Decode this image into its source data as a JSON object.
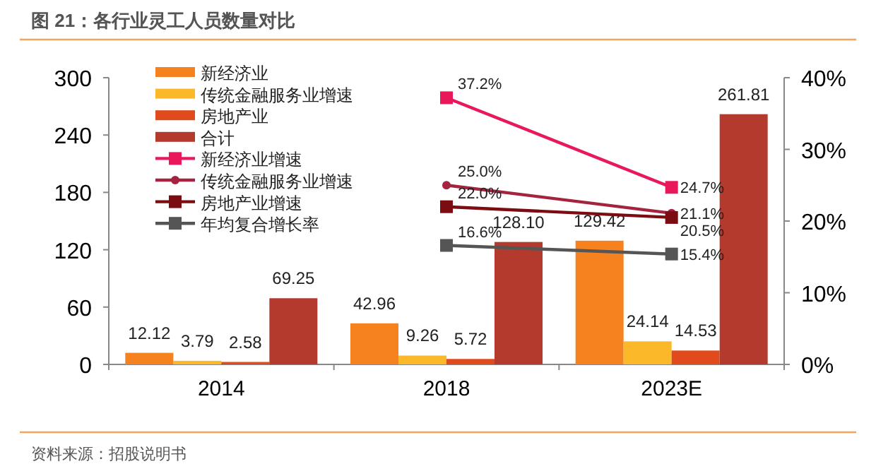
{
  "chart_data": {
    "type": "bar",
    "title": "图 21：各行业灵工人员数量对比",
    "categories": [
      "2014",
      "2018",
      "2023E"
    ],
    "series": [
      {
        "name": "新经济业",
        "color": "#f5821f",
        "values": [
          12.12,
          42.96,
          129.42
        ],
        "value_labels": [
          "12.12",
          "42.96",
          "129.42"
        ]
      },
      {
        "name": "传统金融服务业增速",
        "color": "#fbb829",
        "values": [
          3.79,
          9.26,
          24.14
        ],
        "value_labels": [
          "3.79",
          "9.26",
          "24.14"
        ]
      },
      {
        "name": "房地产业",
        "color": "#e04a1d",
        "values": [
          2.58,
          5.72,
          14.53
        ],
        "value_labels": [
          "2.58",
          "5.72",
          "14.53"
        ]
      },
      {
        "name": "合计",
        "color": "#b33a2c",
        "values": [
          69.25,
          128.1,
          261.81
        ],
        "value_labels": [
          "69.25",
          "128.10",
          "261.81"
        ]
      },
      {
        "name": "新经济业增速",
        "type": "line",
        "axis": "y2",
        "marker": "square",
        "color": "#e8185a",
        "values": [
          null,
          37.2,
          24.7
        ],
        "value_labels": [
          null,
          "37.2%",
          "24.7%"
        ]
      },
      {
        "name": "传统金融服务业增速",
        "type": "line",
        "axis": "y2",
        "marker": "circle",
        "color": "#a4233f",
        "values": [
          null,
          25.0,
          21.1
        ],
        "value_labels": [
          null,
          "25.0%",
          "21.1%"
        ]
      },
      {
        "name": "房地产业增速",
        "type": "line",
        "axis": "y2",
        "marker": "square",
        "color": "#7a0c12",
        "values": [
          null,
          22.0,
          20.5
        ],
        "value_labels": [
          null,
          "22.0%",
          "20.5%"
        ]
      },
      {
        "name": "年均复合增长率",
        "type": "line",
        "axis": "y2",
        "marker": "square",
        "color": "#555555",
        "values": [
          null,
          16.6,
          15.4
        ],
        "value_labels": [
          null,
          "16.6%",
          "15.4%"
        ]
      }
    ],
    "ylim": [
      0,
      300
    ],
    "yticks": [
      0,
      60,
      120,
      180,
      240,
      300
    ],
    "y2lim": [
      0,
      40
    ],
    "y2ticks": [
      {
        "value": 0,
        "label": "0%"
      },
      {
        "value": 10,
        "label": "10%"
      },
      {
        "value": 20,
        "label": "20%"
      },
      {
        "value": 30,
        "label": "30%"
      },
      {
        "value": 40,
        "label": "40%"
      }
    ],
    "legend": "top left",
    "grid": false,
    "annotations": [
      "资料来源：招股说明书"
    ]
  }
}
